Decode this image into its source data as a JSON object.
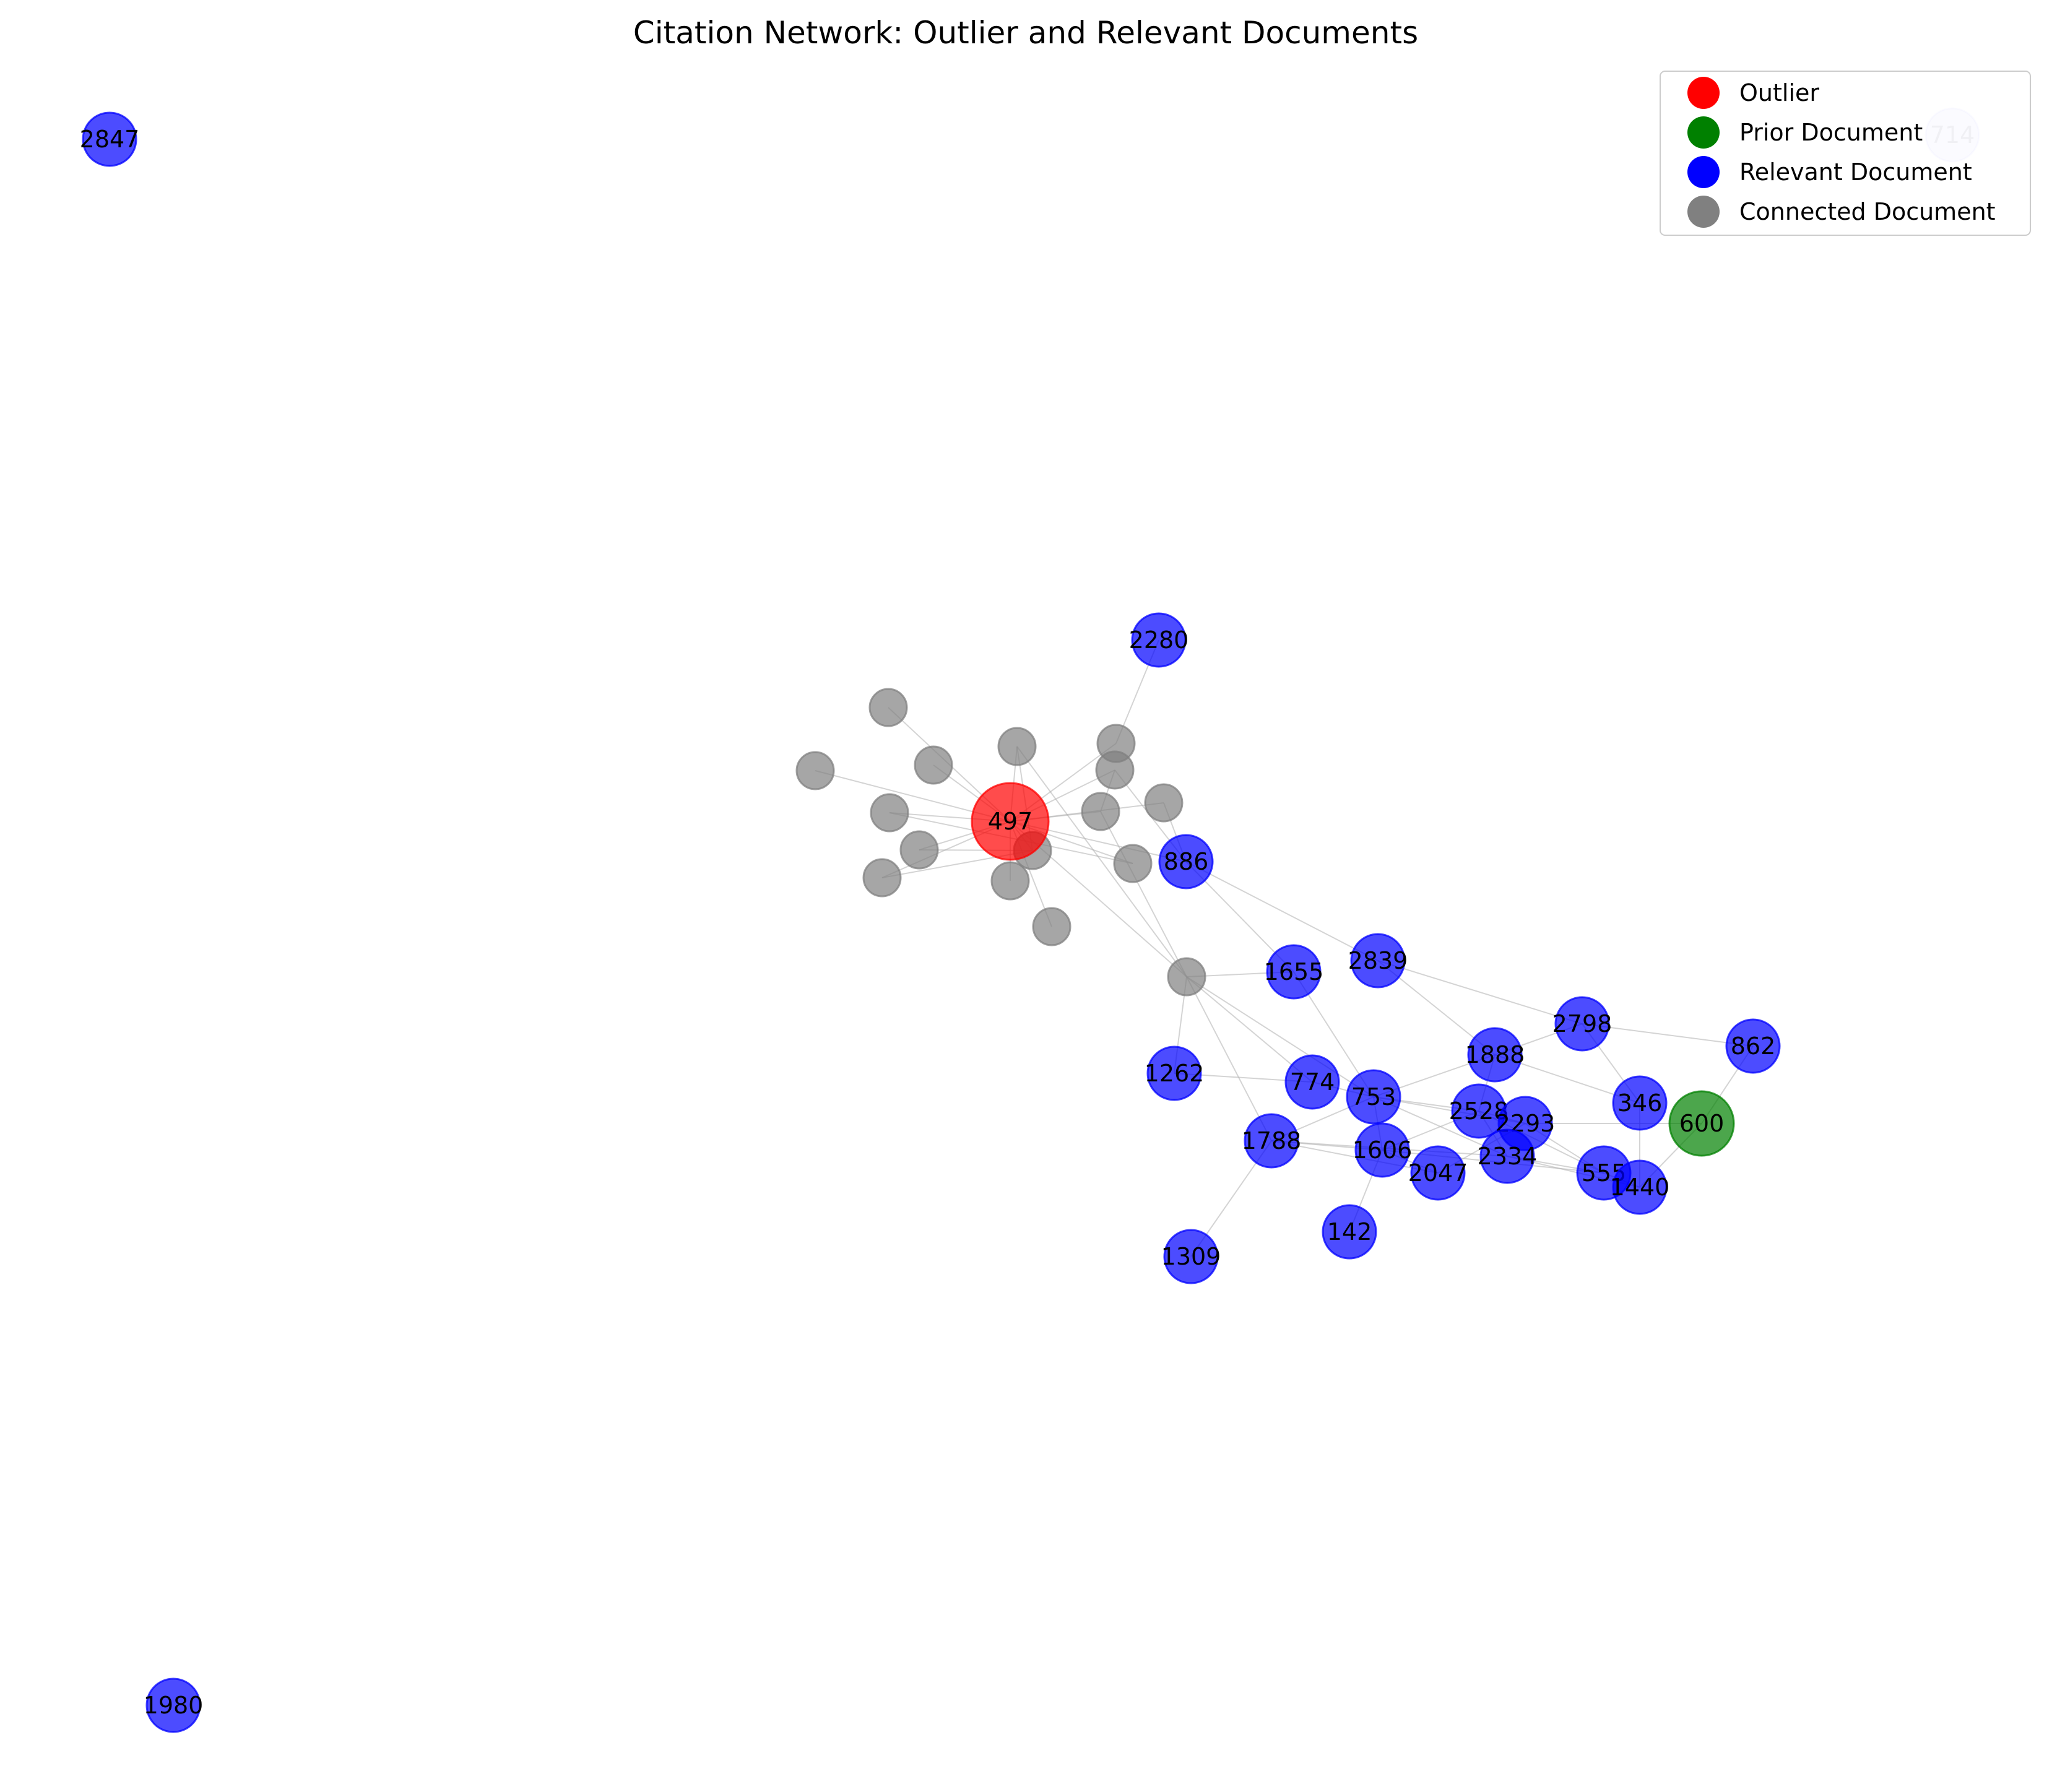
{
  "title": "Citation Network: Outlier and Relevant Documents",
  "colors": {
    "outlier": "#ff0000",
    "prior": "#008000",
    "relevant": "#0000ff",
    "connected": "#808080",
    "edge": "#b0b0b0"
  },
  "legend": [
    {
      "label": "Outlier",
      "color": "#ff0000"
    },
    {
      "label": "Prior Document",
      "color": "#008000"
    },
    {
      "label": "Relevant Document",
      "color": "#0000ff"
    },
    {
      "label": "Connected Document",
      "color": "#808080"
    }
  ],
  "nodes": [
    {
      "id": "497",
      "label": "497",
      "type": "outlier"
    },
    {
      "id": "600",
      "label": "600",
      "type": "prior"
    },
    {
      "id": "2847",
      "label": "2847",
      "type": "relevant"
    },
    {
      "id": "714",
      "label": "714",
      "type": "relevant",
      "faded": true
    },
    {
      "id": "2280",
      "label": "2280",
      "type": "relevant"
    },
    {
      "id": "886",
      "label": "886",
      "type": "relevant"
    },
    {
      "id": "1655",
      "label": "1655",
      "type": "relevant"
    },
    {
      "id": "2839",
      "label": "2839",
      "type": "relevant"
    },
    {
      "id": "2798",
      "label": "2798",
      "type": "relevant"
    },
    {
      "id": "862",
      "label": "862",
      "type": "relevant"
    },
    {
      "id": "1888",
      "label": "1888",
      "type": "relevant"
    },
    {
      "id": "346",
      "label": "346",
      "type": "relevant"
    },
    {
      "id": "1262",
      "label": "1262",
      "type": "relevant"
    },
    {
      "id": "774",
      "label": "774",
      "type": "relevant"
    },
    {
      "id": "753",
      "label": "753",
      "type": "relevant"
    },
    {
      "id": "2528",
      "label": "2528",
      "type": "relevant"
    },
    {
      "id": "2293",
      "label": "2293",
      "type": "relevant"
    },
    {
      "id": "1788",
      "label": "1788",
      "type": "relevant"
    },
    {
      "id": "1606",
      "label": "1606",
      "type": "relevant"
    },
    {
      "id": "2047",
      "label": "2047",
      "type": "relevant"
    },
    {
      "id": "2334",
      "label": "2334",
      "type": "relevant"
    },
    {
      "id": "555",
      "label": "555",
      "type": "relevant"
    },
    {
      "id": "1440",
      "label": "1440",
      "type": "relevant"
    },
    {
      "id": "142",
      "label": "142",
      "type": "relevant"
    },
    {
      "id": "1309",
      "label": "1309",
      "type": "relevant"
    },
    {
      "id": "1980",
      "label": "1980",
      "type": "relevant"
    },
    {
      "id": "c1",
      "label": "",
      "type": "connected"
    },
    {
      "id": "c2",
      "label": "",
      "type": "connected"
    },
    {
      "id": "c3",
      "label": "",
      "type": "connected"
    },
    {
      "id": "c4",
      "label": "",
      "type": "connected"
    },
    {
      "id": "c5",
      "label": "",
      "type": "connected"
    },
    {
      "id": "c6",
      "label": "",
      "type": "connected"
    },
    {
      "id": "c7",
      "label": "",
      "type": "connected"
    },
    {
      "id": "c8",
      "label": "",
      "type": "connected"
    },
    {
      "id": "c9",
      "label": "",
      "type": "connected"
    },
    {
      "id": "c10",
      "label": "",
      "type": "connected"
    },
    {
      "id": "c11",
      "label": "",
      "type": "connected"
    },
    {
      "id": "c12",
      "label": "",
      "type": "connected"
    },
    {
      "id": "c13",
      "label": "",
      "type": "connected"
    },
    {
      "id": "c14",
      "label": "",
      "type": "connected"
    },
    {
      "id": "c15",
      "label": "",
      "type": "connected"
    },
    {
      "id": "c16",
      "label": "",
      "type": "connected"
    }
  ],
  "edges": [
    [
      "497",
      "c1"
    ],
    [
      "497",
      "c2"
    ],
    [
      "497",
      "c3"
    ],
    [
      "497",
      "c4"
    ],
    [
      "497",
      "c5"
    ],
    [
      "497",
      "c6"
    ],
    [
      "497",
      "c7"
    ],
    [
      "497",
      "c8"
    ],
    [
      "497",
      "c9"
    ],
    [
      "497",
      "c10"
    ],
    [
      "497",
      "c11"
    ],
    [
      "497",
      "c12"
    ],
    [
      "497",
      "c13"
    ],
    [
      "497",
      "c14"
    ],
    [
      "497",
      "c15"
    ],
    [
      "497",
      "c16"
    ],
    [
      "497",
      "886"
    ],
    [
      "c5",
      "2280"
    ],
    [
      "c6",
      "c9"
    ],
    [
      "c6",
      "886"
    ],
    [
      "c7",
      "886"
    ],
    [
      "c8",
      "c14"
    ],
    [
      "c9",
      "c16"
    ],
    [
      "c11",
      "c14"
    ],
    [
      "c4",
      "c15"
    ],
    [
      "c10",
      "c14"
    ],
    [
      "c16",
      "1655"
    ],
    [
      "c16",
      "1262"
    ],
    [
      "c16",
      "774"
    ],
    [
      "c16",
      "753"
    ],
    [
      "c16",
      "1788"
    ],
    [
      "c8",
      "c16"
    ],
    [
      "886",
      "2839"
    ],
    [
      "886",
      "1655"
    ],
    [
      "2839",
      "2798"
    ],
    [
      "2839",
      "1888"
    ],
    [
      "1655",
      "753"
    ],
    [
      "2798",
      "862"
    ],
    [
      "2798",
      "346"
    ],
    [
      "2798",
      "1888"
    ],
    [
      "862",
      "600"
    ],
    [
      "1888",
      "753"
    ],
    [
      "1888",
      "2528"
    ],
    [
      "1888",
      "346"
    ],
    [
      "1262",
      "774"
    ],
    [
      "774",
      "753"
    ],
    [
      "753",
      "2528"
    ],
    [
      "753",
      "2293"
    ],
    [
      "753",
      "2334"
    ],
    [
      "753",
      "1606"
    ],
    [
      "753",
      "1788"
    ],
    [
      "2528",
      "2293"
    ],
    [
      "2528",
      "2334"
    ],
    [
      "2528",
      "555"
    ],
    [
      "2293",
      "600"
    ],
    [
      "2293",
      "555"
    ],
    [
      "1788",
      "1606"
    ],
    [
      "1788",
      "2047"
    ],
    [
      "1788",
      "1309"
    ],
    [
      "1788",
      "2334"
    ],
    [
      "1606",
      "142"
    ],
    [
      "1606",
      "2047"
    ],
    [
      "1606",
      "2528"
    ],
    [
      "1606",
      "555"
    ],
    [
      "2047",
      "2293"
    ],
    [
      "2334",
      "555"
    ],
    [
      "2334",
      "1440"
    ],
    [
      "555",
      "1440"
    ],
    [
      "1440",
      "600"
    ],
    [
      "346",
      "1440"
    ]
  ]
}
